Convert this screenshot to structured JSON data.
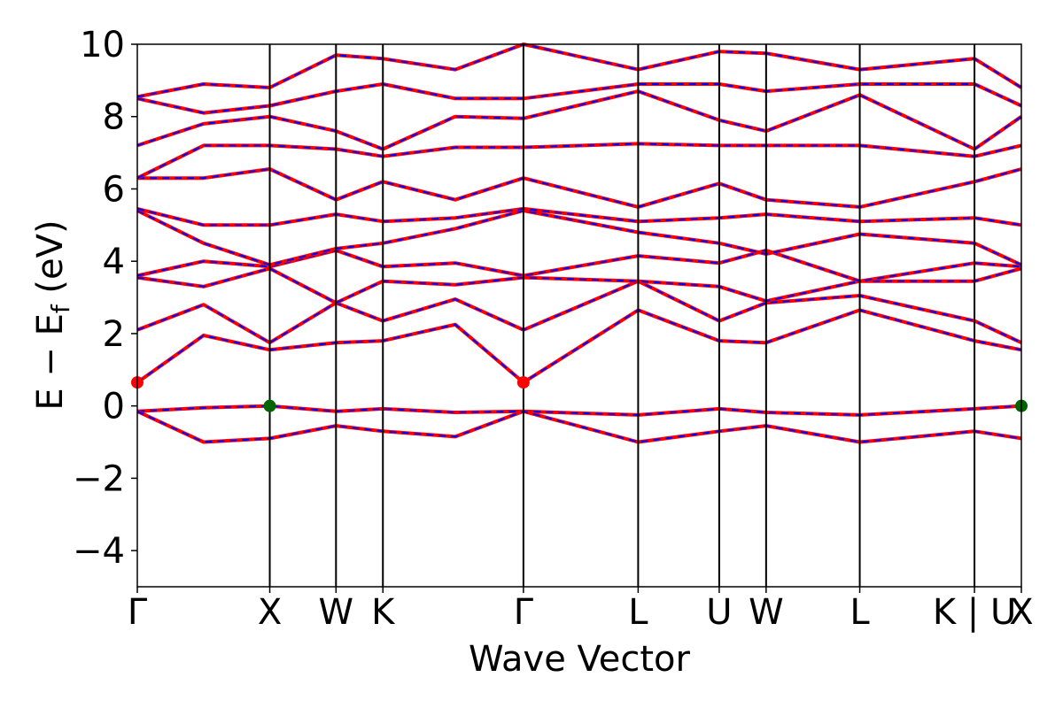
{
  "chart_data": {
    "type": "line",
    "title": "",
    "xlabel": "Wave Vector",
    "ylabel": {
      "main": "E  −  E",
      "sub": "f",
      "unit": " (eV)"
    },
    "ylim": [
      -5,
      10
    ],
    "yticks": [
      -4,
      -2,
      0,
      2,
      4,
      6,
      8,
      10
    ],
    "ytick_labels": [
      "−4",
      "−2",
      "0",
      "2",
      "4",
      "6",
      "8",
      "10"
    ],
    "kpoints": [
      {
        "label": "Γ",
        "x": 0.0
      },
      {
        "label": "X",
        "x": 1.0
      },
      {
        "label": "W",
        "x": 1.5
      },
      {
        "label": "K",
        "x": 1.854
      },
      {
        "label": "Γ",
        "x": 2.915
      },
      {
        "label": "L",
        "x": 3.781
      },
      {
        "label": "U",
        "x": 4.393
      },
      {
        "label": "W",
        "x": 4.747
      },
      {
        "label": "L",
        "x": 5.454
      },
      {
        "label": "K | U",
        "x": 6.32
      },
      {
        "label": "X",
        "x": 6.674
      }
    ],
    "line_colors": {
      "spin_up": "#ff0000",
      "spin_down": "#0000ff"
    },
    "cbm_markers": {
      "color": "#ff0000",
      "points": [
        {
          "x": 0.0,
          "y": 0.65
        },
        {
          "x": 2.915,
          "y": 0.65
        }
      ]
    },
    "vbm_markers": {
      "color": "#006400",
      "points": [
        {
          "x": 1.0,
          "y": 0.0
        },
        {
          "x": 6.674,
          "y": 0.0
        }
      ]
    },
    "series": [
      {
        "values": [
          -0.15,
          -0.05,
          0.0,
          -0.15,
          -0.08,
          -0.18,
          -0.15,
          -0.25,
          -0.08,
          -0.18,
          -0.25,
          -0.08,
          0.0
        ]
      },
      {
        "values": [
          -0.15,
          -1.0,
          -0.9,
          -0.55,
          -0.7,
          -0.85,
          -0.15,
          -1.0,
          -0.7,
          -0.55,
          -1.0,
          -0.7,
          -0.9
        ]
      },
      {
        "values": [
          0.65,
          1.95,
          1.55,
          1.75,
          1.8,
          2.25,
          0.65,
          2.65,
          1.8,
          1.75,
          2.65,
          1.8,
          1.55
        ]
      },
      {
        "values": [
          2.1,
          2.8,
          1.75,
          2.85,
          2.35,
          2.95,
          2.1,
          3.45,
          2.35,
          2.85,
          3.05,
          2.35,
          1.75
        ]
      },
      {
        "values": [
          3.55,
          3.3,
          3.8,
          2.85,
          3.45,
          3.35,
          3.55,
          3.45,
          3.3,
          2.9,
          3.45,
          3.45,
          3.8
        ]
      },
      {
        "values": [
          3.6,
          4.0,
          3.85,
          4.3,
          3.85,
          3.95,
          3.6,
          4.15,
          3.95,
          4.3,
          3.45,
          3.95,
          3.85
        ]
      },
      {
        "values": [
          5.4,
          4.5,
          3.9,
          4.35,
          4.5,
          4.9,
          5.4,
          4.8,
          4.5,
          4.2,
          4.75,
          4.5,
          3.9
        ]
      },
      {
        "values": [
          5.45,
          5.0,
          5.0,
          5.3,
          5.1,
          5.2,
          5.45,
          5.1,
          5.2,
          5.3,
          5.1,
          5.2,
          5.0
        ]
      },
      {
        "values": [
          6.3,
          6.3,
          6.55,
          5.7,
          6.2,
          5.7,
          6.3,
          5.5,
          6.15,
          5.7,
          5.5,
          6.2,
          6.55
        ]
      },
      {
        "values": [
          6.3,
          7.2,
          7.2,
          7.1,
          6.9,
          7.15,
          7.15,
          7.25,
          7.2,
          7.2,
          7.2,
          6.9,
          7.2
        ]
      },
      {
        "values": [
          7.2,
          7.8,
          8.0,
          7.6,
          7.1,
          8.0,
          7.95,
          8.7,
          7.9,
          7.6,
          8.6,
          7.1,
          8.0
        ]
      },
      {
        "values": [
          8.5,
          8.1,
          8.3,
          8.7,
          8.9,
          8.5,
          8.5,
          8.9,
          8.9,
          8.7,
          8.9,
          8.9,
          8.3
        ]
      },
      {
        "values": [
          8.55,
          8.9,
          8.8,
          9.7,
          9.6,
          9.3,
          10.0,
          9.3,
          9.8,
          9.75,
          9.3,
          9.6,
          8.8
        ]
      }
    ],
    "segment_x": [
      0.0,
      0.5,
      1.0,
      1.5,
      1.854,
      2.4,
      2.915,
      3.781,
      4.393,
      4.747,
      5.454,
      6.32,
      6.674
    ]
  }
}
